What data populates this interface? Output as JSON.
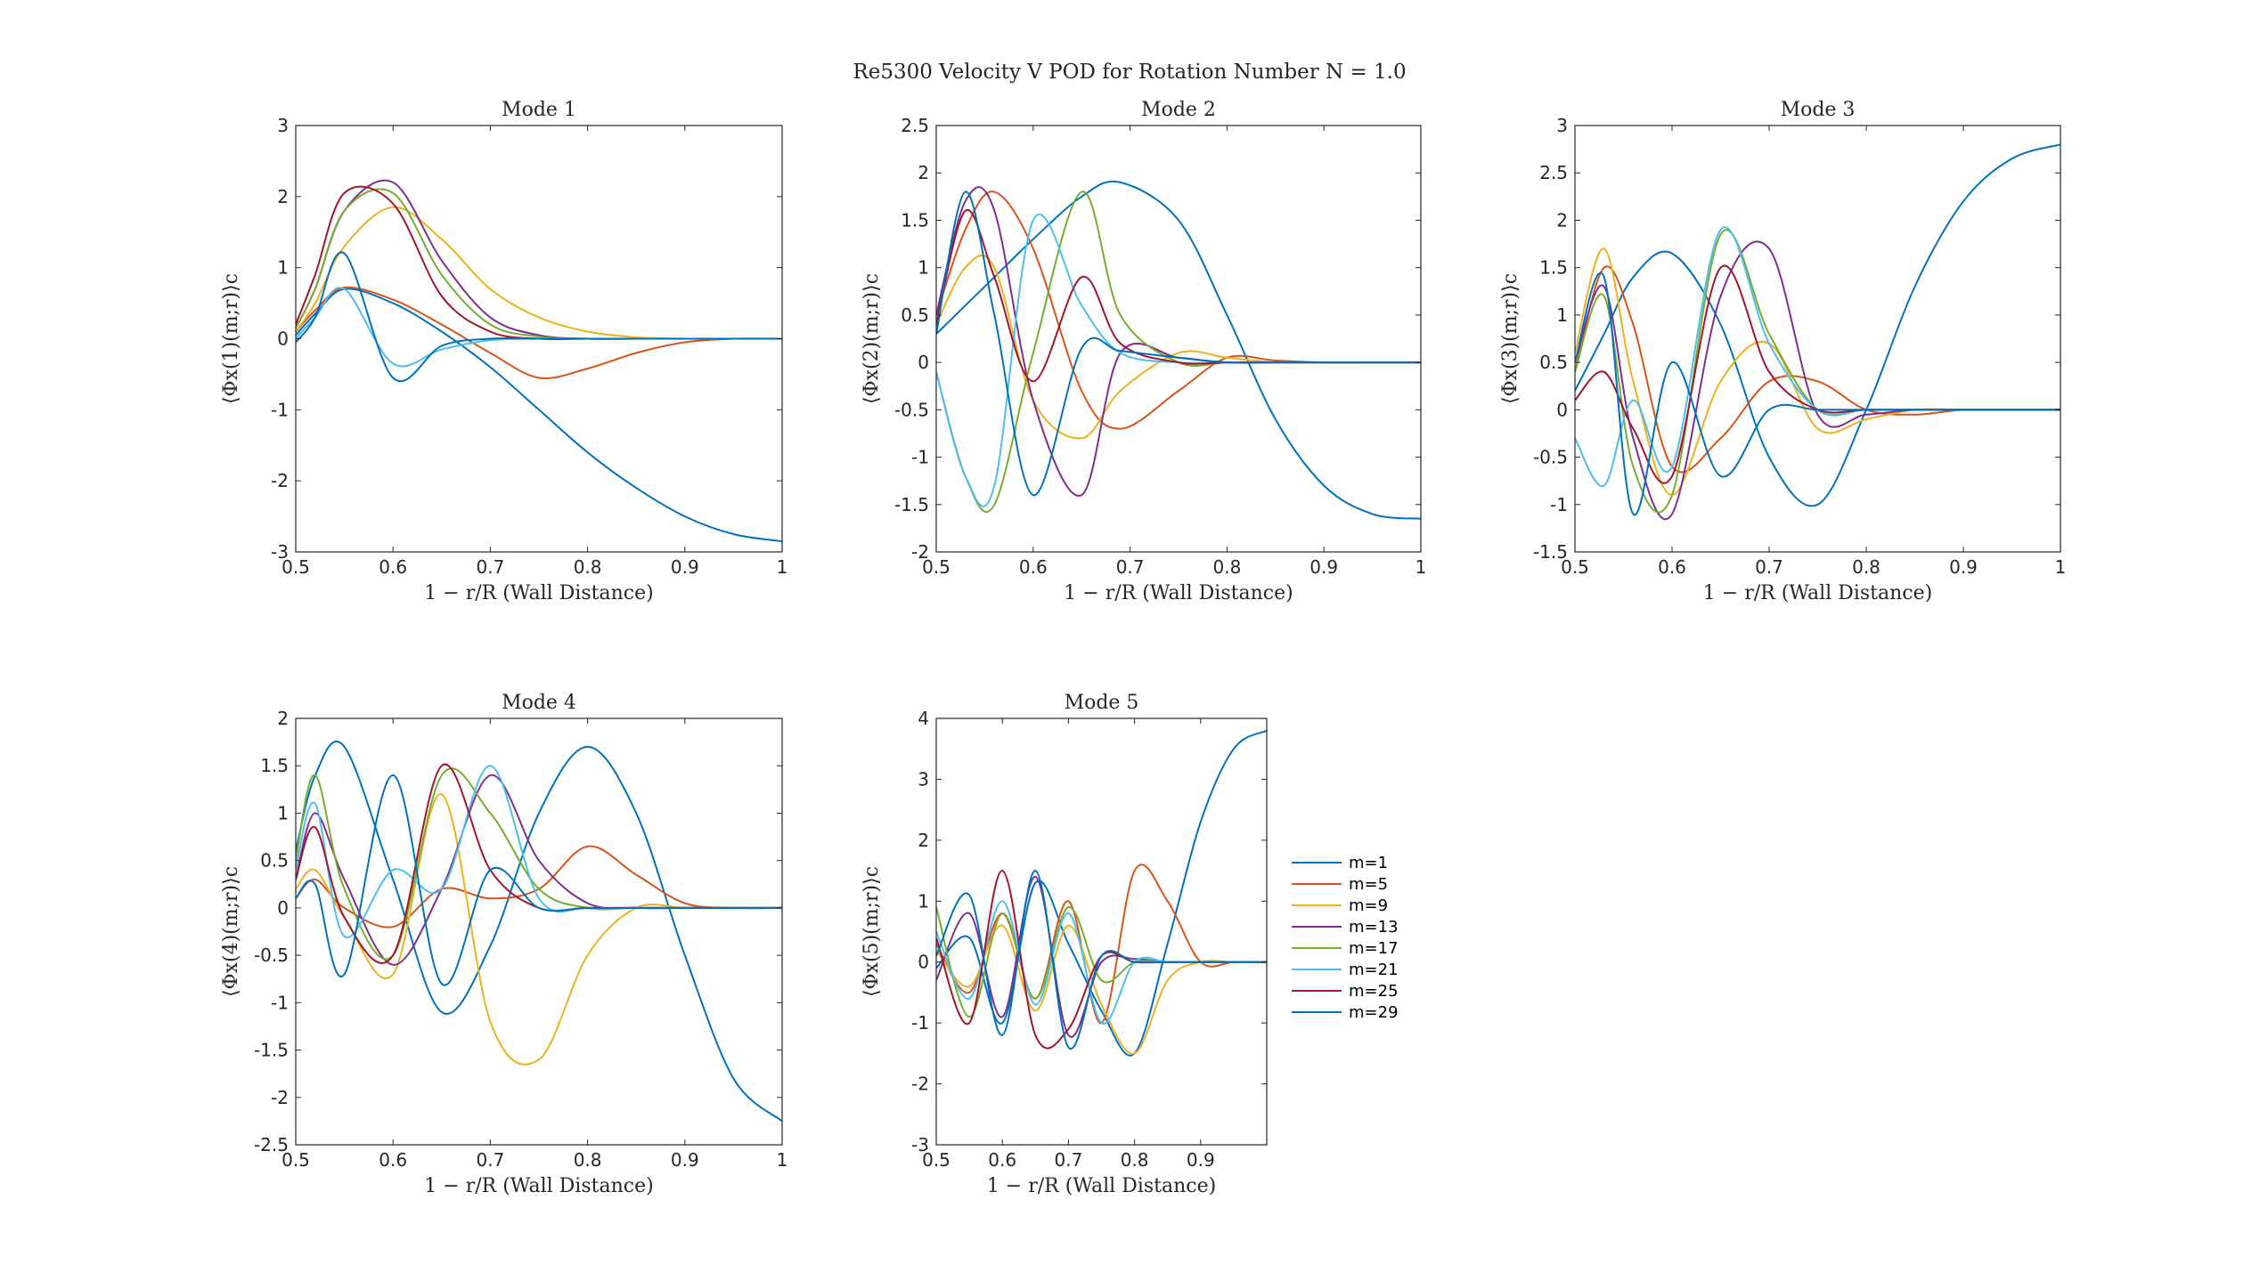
{
  "figure": {
    "title": "Re5300 Velocity V POD for Rotation Number N = 1.0"
  },
  "legend": {
    "entries": [
      "m=1",
      "m=5",
      "m=9",
      "m=13",
      "m=17",
      "m=21",
      "m=25",
      "m=29"
    ]
  },
  "colors": [
    "#0072BD",
    "#D95319",
    "#EDB120",
    "#7E2F8E",
    "#77AC30",
    "#4DBEEE",
    "#A2142F",
    "#0072BD"
  ],
  "chart_data": [
    {
      "type": "line",
      "title": "Mode 1",
      "xlabel": "1 − r/R (Wall Distance)",
      "ylabel": "⟨Φx(1)(m;r)⟩c",
      "xlim": [
        0.5,
        1
      ],
      "ylim": [
        -3,
        3
      ],
      "xticks": [
        0.5,
        0.6,
        0.7,
        0.8,
        0.9,
        1
      ],
      "yticks": [
        -3,
        -2,
        -1,
        0,
        1,
        2,
        3
      ],
      "x": [
        0.5,
        0.52,
        0.55,
        0.6,
        0.65,
        0.7,
        0.75,
        0.8,
        0.85,
        0.9,
        0.95,
        1.0
      ],
      "series": [
        {
          "name": "m=1",
          "values": [
            0.05,
            0.35,
            0.7,
            0.5,
            0.1,
            -0.4,
            -1.0,
            -1.6,
            -2.1,
            -2.5,
            -2.75,
            -2.85
          ]
        },
        {
          "name": "m=5",
          "values": [
            0.1,
            0.4,
            0.72,
            0.55,
            0.2,
            -0.2,
            -0.55,
            -0.42,
            -0.2,
            -0.05,
            0.0,
            0.0
          ]
        },
        {
          "name": "m=9",
          "values": [
            0.1,
            0.5,
            1.3,
            1.85,
            1.4,
            0.7,
            0.3,
            0.1,
            0.02,
            0.0,
            0.0,
            0.0
          ]
        },
        {
          "name": "m=13",
          "values": [
            0.15,
            0.7,
            1.8,
            2.2,
            1.1,
            0.3,
            0.05,
            0.0,
            0.0,
            0.0,
            0.0,
            0.0
          ]
        },
        {
          "name": "m=17",
          "values": [
            0.15,
            0.7,
            1.8,
            2.05,
            0.9,
            0.2,
            0.03,
            0.0,
            0.0,
            0.0,
            0.0,
            0.0
          ]
        },
        {
          "name": "m=21",
          "values": [
            0.0,
            0.3,
            0.7,
            -0.35,
            -0.15,
            -0.02,
            0.0,
            0.0,
            0.0,
            0.0,
            0.0,
            0.0
          ]
        },
        {
          "name": "m=25",
          "values": [
            0.2,
            0.9,
            2.05,
            1.9,
            0.6,
            0.1,
            0.0,
            0.0,
            0.0,
            0.0,
            0.0,
            0.0
          ]
        },
        {
          "name": "m=29",
          "values": [
            -0.05,
            0.3,
            1.2,
            -0.55,
            -0.1,
            0.0,
            0.0,
            0.0,
            0.0,
            0.0,
            0.0,
            0.0
          ]
        }
      ]
    },
    {
      "type": "line",
      "title": "Mode 2",
      "xlabel": "1 − r/R (Wall Distance)",
      "ylabel": "⟨Φx(2)(m;r)⟩c",
      "xlim": [
        0.5,
        1
      ],
      "ylim": [
        -2,
        2.5
      ],
      "xticks": [
        0.5,
        0.6,
        0.7,
        0.8,
        0.9,
        1
      ],
      "yticks": [
        -2,
        -1.5,
        -1,
        -0.5,
        0,
        0.5,
        1,
        1.5,
        2,
        2.5
      ],
      "x": [
        0.5,
        0.53,
        0.56,
        0.6,
        0.65,
        0.69,
        0.75,
        0.8,
        0.85,
        0.9,
        0.95,
        1.0
      ],
      "series": [
        {
          "name": "m=1",
          "values": [
            0.3,
            0.6,
            0.9,
            1.3,
            1.75,
            1.9,
            1.5,
            0.5,
            -0.6,
            -1.3,
            -1.6,
            -1.65
          ]
        },
        {
          "name": "m=5",
          "values": [
            0.5,
            1.4,
            1.8,
            1.2,
            -0.3,
            -0.7,
            -0.3,
            0.05,
            0.02,
            0.0,
            0.0,
            0.0
          ]
        },
        {
          "name": "m=9",
          "values": [
            0.4,
            1.0,
            1.0,
            -0.4,
            -0.8,
            -0.3,
            0.1,
            0.05,
            0.0,
            0.0,
            0.0,
            0.0
          ]
        },
        {
          "name": "m=13",
          "values": [
            0.5,
            1.7,
            1.6,
            -0.4,
            -1.4,
            0.1,
            0.05,
            0.0,
            0.0,
            0.0,
            0.0,
            0.0
          ]
        },
        {
          "name": "m=17",
          "values": [
            -0.1,
            -1.2,
            -1.5,
            0.1,
            1.8,
            0.5,
            0.0,
            0.0,
            0.0,
            0.0,
            0.0,
            0.0
          ]
        },
        {
          "name": "m=21",
          "values": [
            -0.1,
            -1.2,
            -1.3,
            1.5,
            0.6,
            0.1,
            0.0,
            0.0,
            0.0,
            0.0,
            0.0,
            0.0
          ]
        },
        {
          "name": "m=25",
          "values": [
            0.4,
            1.6,
            0.9,
            -0.2,
            0.9,
            0.2,
            0.0,
            0.0,
            0.0,
            0.0,
            0.0,
            0.0
          ]
        },
        {
          "name": "m=29",
          "values": [
            0.3,
            1.8,
            0.5,
            -1.4,
            0.15,
            0.12,
            0.05,
            0.0,
            0.0,
            0.0,
            0.0,
            0.0
          ]
        }
      ]
    },
    {
      "type": "line",
      "title": "Mode 3",
      "xlabel": "1 − r/R (Wall Distance)",
      "ylabel": "⟨Φx(3)(m;r)⟩c",
      "xlim": [
        0.5,
        1
      ],
      "ylim": [
        -1.5,
        3
      ],
      "xticks": [
        0.5,
        0.6,
        0.7,
        0.8,
        0.9,
        1
      ],
      "yticks": [
        -1.5,
        -1,
        -0.5,
        0,
        0.5,
        1,
        1.5,
        2,
        2.5,
        3
      ],
      "x": [
        0.5,
        0.53,
        0.56,
        0.6,
        0.65,
        0.7,
        0.75,
        0.8,
        0.85,
        0.9,
        0.95,
        1.0
      ],
      "series": [
        {
          "name": "m=1",
          "values": [
            0.2,
            0.8,
            1.4,
            1.65,
            0.9,
            -0.5,
            -1.0,
            0.0,
            1.3,
            2.2,
            2.65,
            2.8
          ]
        },
        {
          "name": "m=5",
          "values": [
            0.4,
            1.5,
            0.9,
            -0.6,
            -0.3,
            0.3,
            0.3,
            0.0,
            -0.05,
            0.0,
            0.0,
            0.0
          ]
        },
        {
          "name": "m=9",
          "values": [
            0.6,
            1.7,
            0.3,
            -0.9,
            0.3,
            0.7,
            -0.2,
            -0.1,
            0.0,
            0.0,
            0.0,
            0.0
          ]
        },
        {
          "name": "m=13",
          "values": [
            0.5,
            1.3,
            -0.3,
            -1.1,
            1.2,
            1.7,
            -0.05,
            -0.05,
            0.0,
            0.0,
            0.0,
            0.0
          ]
        },
        {
          "name": "m=17",
          "values": [
            0.4,
            1.2,
            -0.6,
            -0.9,
            1.85,
            0.8,
            0.0,
            0.0,
            0.0,
            0.0,
            0.0,
            0.0
          ]
        },
        {
          "name": "m=21",
          "values": [
            -0.3,
            -0.8,
            0.1,
            -0.6,
            1.9,
            0.7,
            0.0,
            0.0,
            0.0,
            0.0,
            0.0,
            0.0
          ]
        },
        {
          "name": "m=25",
          "values": [
            0.1,
            0.4,
            -0.2,
            -0.7,
            1.5,
            0.4,
            0.0,
            0.0,
            0.0,
            0.0,
            0.0,
            0.0
          ]
        },
        {
          "name": "m=29",
          "values": [
            0.5,
            1.4,
            -1.1,
            0.5,
            -0.7,
            0.0,
            0.0,
            0.0,
            0.0,
            0.0,
            0.0,
            0.0
          ]
        }
      ]
    },
    {
      "type": "line",
      "title": "Mode 4",
      "xlabel": "1 − r/R (Wall Distance)",
      "ylabel": "⟨Φx(4)(m;r)⟩c",
      "xlim": [
        0.5,
        1
      ],
      "ylim": [
        -2.5,
        2
      ],
      "xticks": [
        0.5,
        0.6,
        0.7,
        0.8,
        0.9,
        1
      ],
      "yticks": [
        -2.5,
        -2,
        -1.5,
        -1,
        -0.5,
        0,
        0.5,
        1,
        1.5,
        2
      ],
      "x": [
        0.5,
        0.52,
        0.55,
        0.6,
        0.65,
        0.7,
        0.75,
        0.8,
        0.85,
        0.9,
        0.95,
        1.0
      ],
      "series": [
        {
          "name": "m=1",
          "values": [
            0.6,
            1.4,
            1.7,
            0.3,
            -1.1,
            -0.4,
            1.0,
            1.7,
            1.0,
            -0.5,
            -1.8,
            -2.25
          ]
        },
        {
          "name": "m=5",
          "values": [
            0.1,
            0.3,
            0.0,
            -0.2,
            0.2,
            0.1,
            0.2,
            0.65,
            0.35,
            0.05,
            0.0,
            0.0
          ]
        },
        {
          "name": "m=9",
          "values": [
            0.2,
            0.4,
            -0.1,
            -0.7,
            1.2,
            -1.2,
            -1.6,
            -0.5,
            0.0,
            0.0,
            0.0,
            0.0
          ]
        },
        {
          "name": "m=13",
          "values": [
            0.3,
            1.0,
            0.3,
            -0.6,
            0.2,
            1.4,
            0.5,
            0.05,
            0.0,
            0.0,
            0.0,
            0.0
          ]
        },
        {
          "name": "m=17",
          "values": [
            0.5,
            1.4,
            0.2,
            -0.5,
            1.4,
            1.0,
            0.2,
            0.0,
            0.0,
            0.0,
            0.0,
            0.0
          ]
        },
        {
          "name": "m=21",
          "values": [
            0.4,
            1.1,
            -0.3,
            0.4,
            0.2,
            1.5,
            0.1,
            0.0,
            0.0,
            0.0,
            0.0,
            0.0
          ]
        },
        {
          "name": "m=25",
          "values": [
            0.3,
            0.85,
            -0.1,
            -0.5,
            1.5,
            0.4,
            0.0,
            0.0,
            0.0,
            0.0,
            0.0,
            0.0
          ]
        },
        {
          "name": "m=29",
          "values": [
            0.1,
            0.25,
            -0.7,
            1.4,
            -0.8,
            0.4,
            0.0,
            0.0,
            0.0,
            0.0,
            0.0,
            0.0
          ]
        }
      ]
    },
    {
      "type": "line",
      "title": "Mode 5",
      "xlabel": "1 − r/R (Wall Distance)",
      "ylabel": "⟨Φx(5)(m;r)⟩c",
      "xlim": [
        0.5,
        1
      ],
      "ylim": [
        -3,
        4
      ],
      "xticks": [
        0.5,
        0.6,
        0.7,
        0.8,
        0.9
      ],
      "yticks": [
        -3,
        -2,
        -1,
        0,
        1,
        2,
        3,
        4
      ],
      "x": [
        0.5,
        0.55,
        0.6,
        0.65,
        0.7,
        0.75,
        0.8,
        0.85,
        0.9,
        0.95,
        1.0
      ],
      "series": [
        {
          "name": "m=1",
          "values": [
            -0.1,
            0.4,
            -1.0,
            1.3,
            0.3,
            -0.8,
            -1.5,
            0.3,
            2.3,
            3.5,
            3.8
          ]
        },
        {
          "name": "m=5",
          "values": [
            0.3,
            -0.5,
            0.8,
            -0.6,
            1.0,
            -1.0,
            1.5,
            1.0,
            0.0,
            0.0,
            0.0
          ]
        },
        {
          "name": "m=9",
          "values": [
            0.2,
            -0.4,
            0.6,
            -0.8,
            0.6,
            -0.7,
            -1.5,
            -0.3,
            0.0,
            0.0,
            0.0
          ]
        },
        {
          "name": "m=13",
          "values": [
            -0.3,
            0.8,
            -0.9,
            1.4,
            -1.2,
            0.0,
            0.05,
            0.0,
            0.0,
            0.0,
            0.0
          ]
        },
        {
          "name": "m=17",
          "values": [
            0.9,
            -0.9,
            0.8,
            -0.6,
            0.9,
            -0.3,
            0.0,
            0.0,
            0.0,
            0.0,
            0.0
          ]
        },
        {
          "name": "m=21",
          "values": [
            0.5,
            -0.6,
            1.0,
            -0.7,
            0.8,
            -1.0,
            0.0,
            0.0,
            0.0,
            0.0,
            0.0
          ]
        },
        {
          "name": "m=25",
          "values": [
            0.4,
            -1.0,
            1.5,
            -1.2,
            -1.1,
            0.1,
            0.0,
            0.0,
            0.0,
            0.0,
            0.0
          ]
        },
        {
          "name": "m=29",
          "values": [
            0.1,
            1.1,
            -1.2,
            1.5,
            -1.4,
            0.1,
            0.0,
            0.0,
            0.0,
            0.0,
            0.0
          ]
        }
      ]
    }
  ]
}
